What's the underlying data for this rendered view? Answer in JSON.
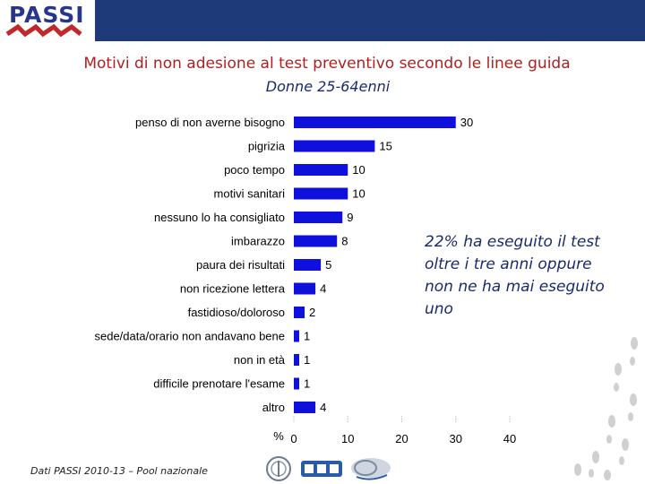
{
  "logo": {
    "text": "PASSI"
  },
  "title": "Motivi di non adesione al test preventivo secondo le linee guida",
  "subtitle": "Donne 25-64enni",
  "annotation": "22% ha eseguito il test oltre i tre anni oppure non ne ha mai eseguito uno",
  "source": "Dati PASSI 2010-13 – Pool nazionale",
  "partner_logos": [
    "seal",
    "ccm",
    "cnesps"
  ],
  "colors": {
    "bar": "#1010dd",
    "title": "#b02020",
    "header": "#1f3a78"
  },
  "chart_data": {
    "type": "bar",
    "orientation": "horizontal",
    "categories": [
      "penso di non averne bisogno",
      "pigrizia",
      "poco tempo",
      "motivi sanitari",
      "nessuno lo ha consigliato",
      "imbarazzo",
      "paura dei risultati",
      "non ricezione lettera",
      "fastidioso/doloroso",
      "sede/data/orario non andavano bene",
      "non in età",
      "difficile prenotare l'esame",
      "altro"
    ],
    "values": [
      30,
      15,
      10,
      10,
      9,
      8,
      5,
      4,
      2,
      1,
      1,
      1,
      4
    ],
    "xlim": [
      0,
      40
    ],
    "xticks": [
      "0",
      "10",
      "20",
      "30",
      "40"
    ],
    "xlabel": "%",
    "title": "",
    "grid": false
  }
}
